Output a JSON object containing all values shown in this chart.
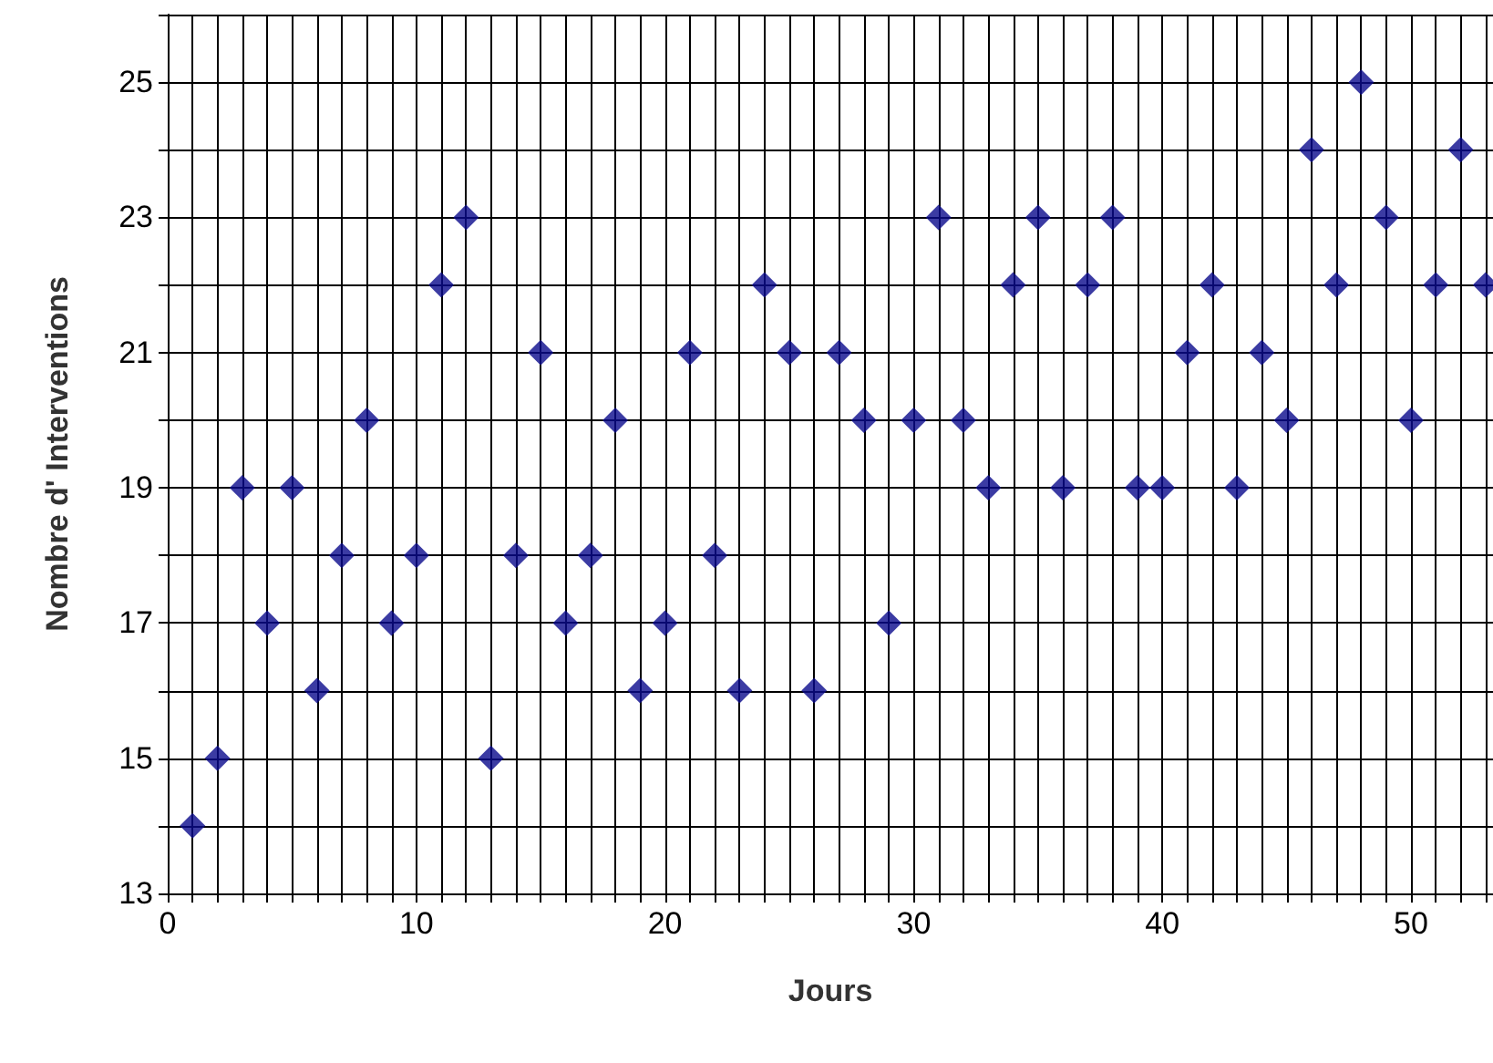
{
  "chart_data": {
    "type": "scatter",
    "xlabel": "Jours",
    "ylabel": "Nombre d' Interventions",
    "marker": "diamond",
    "grid": true,
    "x": [
      1,
      2,
      3,
      4,
      5,
      6,
      7,
      8,
      9,
      10,
      11,
      12,
      13,
      14,
      15,
      16,
      17,
      18,
      19,
      20,
      21,
      22,
      23,
      24,
      25,
      26,
      27,
      28,
      29,
      30,
      31,
      32,
      33,
      34,
      35,
      36,
      37,
      38,
      39,
      40,
      41,
      42,
      43,
      44,
      45,
      46,
      47,
      48,
      49,
      50,
      51,
      52,
      53
    ],
    "series": [
      {
        "color": "#0a0a8c",
        "values": [
          14,
          15,
          19,
          17,
          19,
          16,
          18,
          20,
          17,
          18,
          22,
          23,
          15,
          18,
          21,
          17,
          18,
          20,
          16,
          17,
          21,
          18,
          16,
          22,
          21,
          16,
          21,
          20,
          17,
          20,
          23,
          20,
          19,
          22,
          23,
          19,
          22,
          23,
          19,
          19,
          21,
          22,
          19,
          21,
          20,
          24,
          22,
          25,
          23,
          20,
          22,
          24,
          22
        ]
      }
    ],
    "xlim": [
      0,
      53.3
    ],
    "ylim": [
      13,
      26
    ],
    "xticks": [
      0,
      {
        "value": 1,
        "label": null
      },
      {
        "value": 2,
        "label": null
      },
      {
        "value": 3,
        "label": null
      },
      {
        "value": 4,
        "label": null
      },
      {
        "value": 5,
        "label": null
      },
      {
        "value": 6,
        "label": null
      },
      {
        "value": 7,
        "label": null
      },
      {
        "value": 8,
        "label": null
      },
      {
        "value": 9,
        "label": null
      },
      10,
      {
        "value": 11,
        "label": null
      },
      {
        "value": 12,
        "label": null
      },
      {
        "value": 13,
        "label": null
      },
      {
        "value": 14,
        "label": null
      },
      {
        "value": 15,
        "label": null
      },
      {
        "value": 16,
        "label": null
      },
      {
        "value": 17,
        "label": null
      },
      {
        "value": 18,
        "label": null
      },
      {
        "value": 19,
        "label": null
      },
      20,
      {
        "value": 21,
        "label": null
      },
      {
        "value": 22,
        "label": null
      },
      {
        "value": 23,
        "label": null
      },
      {
        "value": 24,
        "label": null
      },
      {
        "value": 25,
        "label": null
      },
      {
        "value": 26,
        "label": null
      },
      {
        "value": 27,
        "label": null
      },
      {
        "value": 28,
        "label": null
      },
      {
        "value": 29,
        "label": null
      },
      30,
      {
        "value": 31,
        "label": null
      },
      {
        "value": 32,
        "label": null
      },
      {
        "value": 33,
        "label": null
      },
      {
        "value": 34,
        "label": null
      },
      {
        "value": 35,
        "label": null
      },
      {
        "value": 36,
        "label": null
      },
      {
        "value": 37,
        "label": null
      },
      {
        "value": 38,
        "label": null
      },
      {
        "value": 39,
        "label": null
      },
      40,
      {
        "value": 41,
        "label": null
      },
      {
        "value": 42,
        "label": null
      },
      {
        "value": 43,
        "label": null
      },
      {
        "value": 44,
        "label": null
      },
      {
        "value": 45,
        "label": null
      },
      {
        "value": 46,
        "label": null
      },
      {
        "value": 47,
        "label": null
      },
      {
        "value": 48,
        "label": null
      },
      {
        "value": 49,
        "label": null
      },
      50,
      {
        "value": 51,
        "label": null
      },
      {
        "value": 52,
        "label": null
      },
      {
        "value": 53,
        "label": null
      }
    ],
    "yticks": [
      13,
      {
        "value": 14,
        "label": null
      },
      15,
      {
        "value": 16,
        "label": null
      },
      17,
      {
        "value": 18,
        "label": null
      },
      19,
      {
        "value": 20,
        "label": null
      },
      21,
      {
        "value": 22,
        "label": null
      },
      23,
      {
        "value": 24,
        "label": null
      },
      25,
      {
        "value": 26,
        "label": null
      }
    ]
  }
}
